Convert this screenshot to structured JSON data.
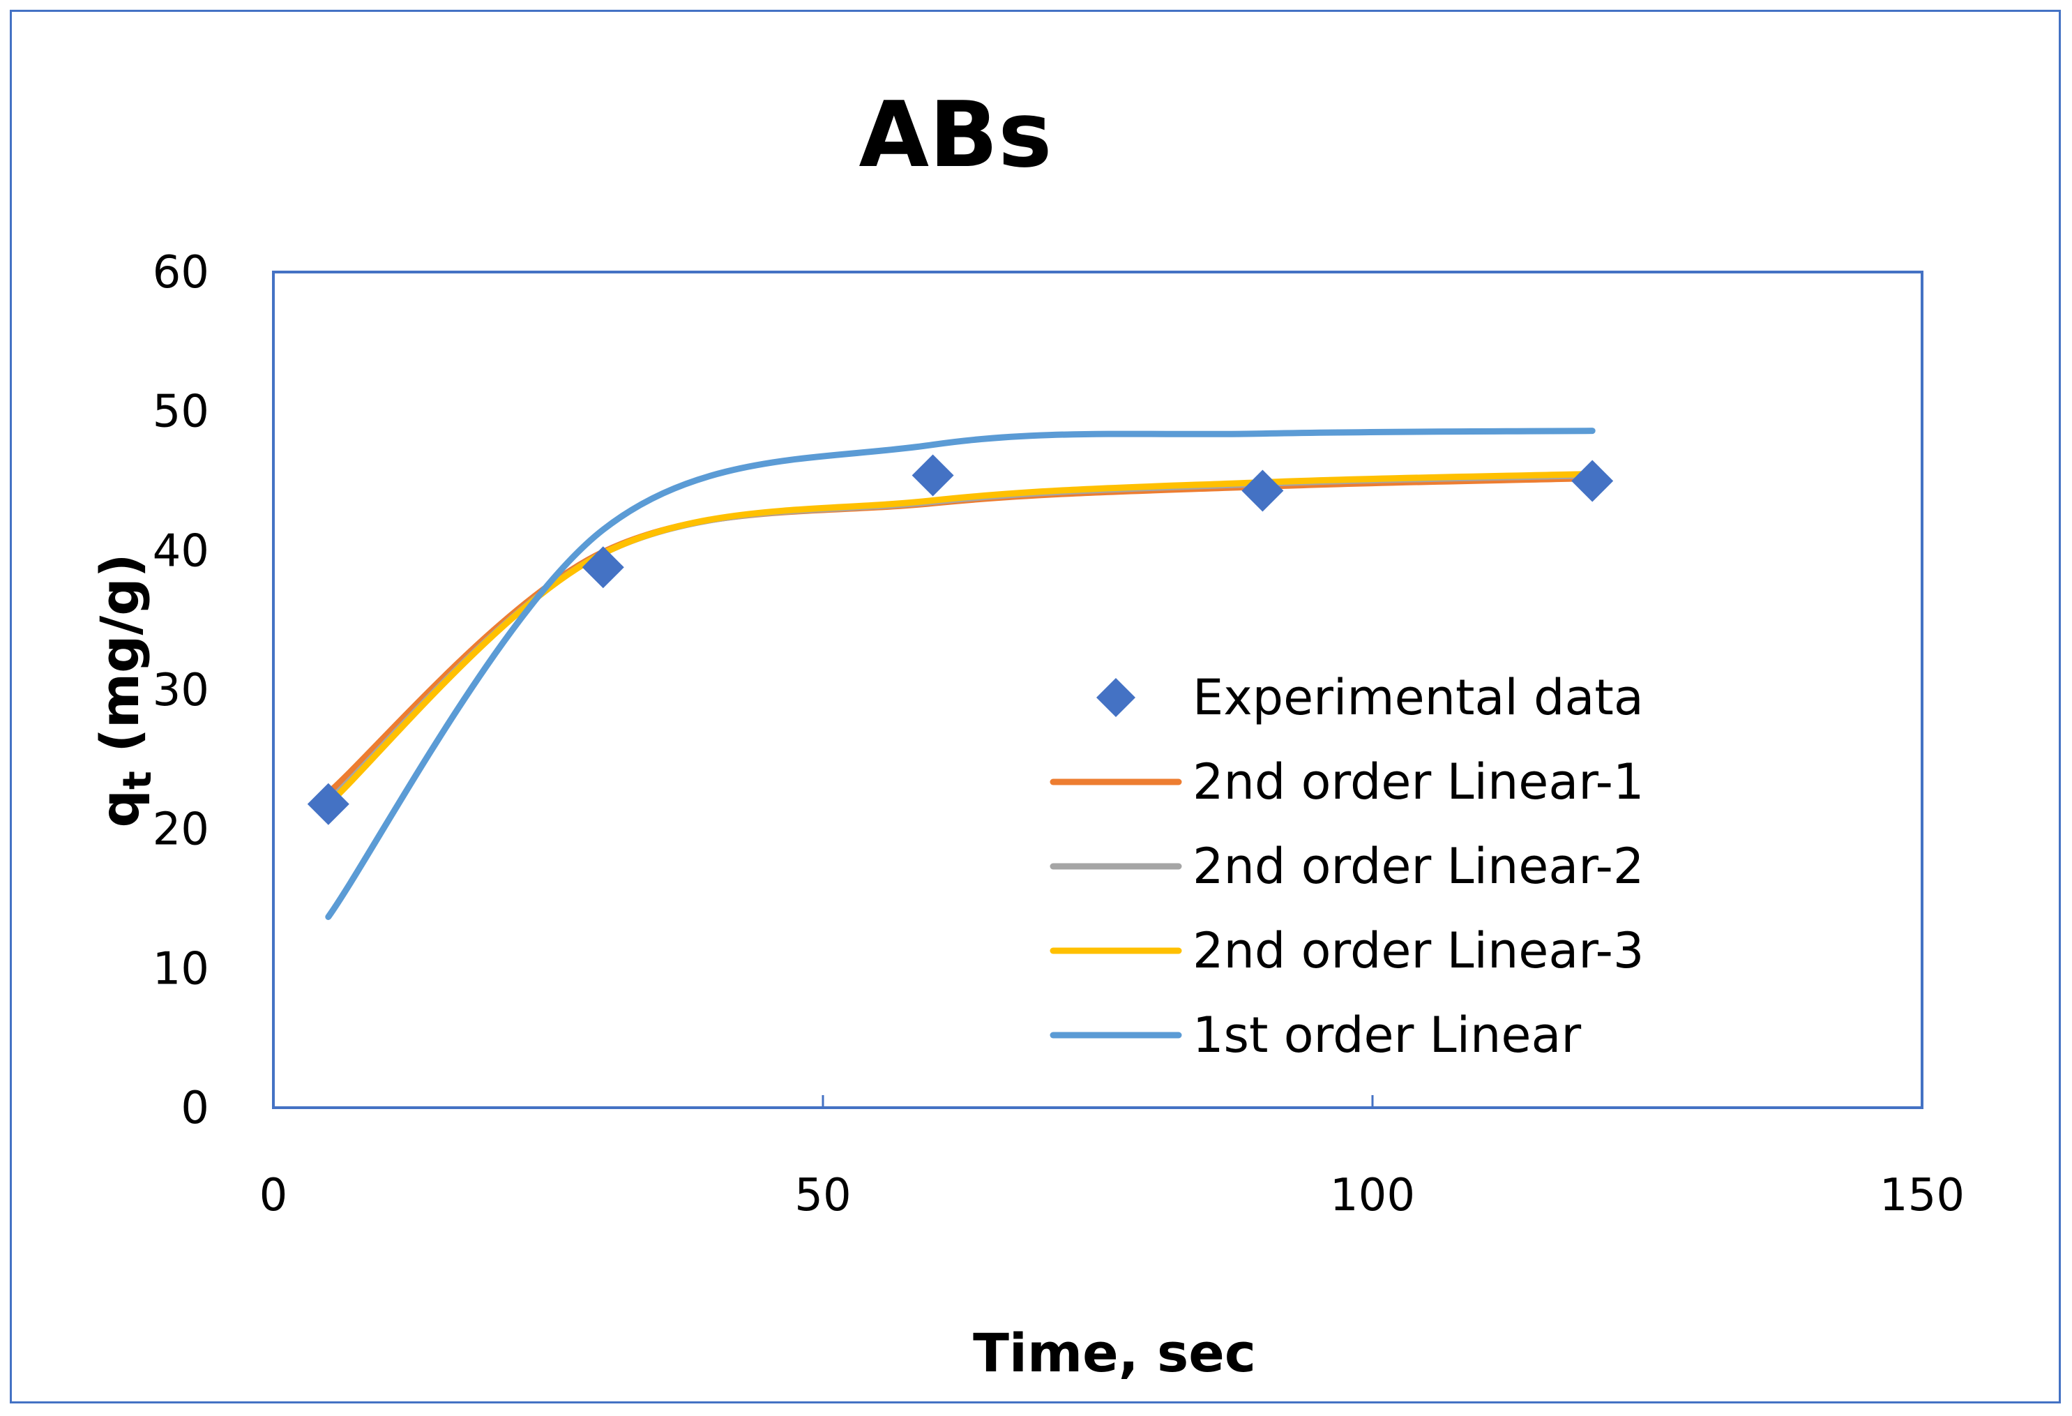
{
  "chart_data": {
    "type": "scatter",
    "title": "ABs",
    "xlabel": "Time, sec",
    "ylabel_main": "q",
    "ylabel_sub": "t",
    "ylabel_units": " (mg/g)",
    "xlim": [
      0,
      150
    ],
    "ylim": [
      0,
      60
    ],
    "xticks": [
      0,
      50,
      100,
      150
    ],
    "yticks": [
      0,
      10,
      20,
      30,
      40,
      50,
      60
    ],
    "grid": false,
    "legend_position": "right",
    "series": [
      {
        "name": "Experimental data",
        "kind": "markers",
        "marker": "diamond",
        "color": "#4472c4",
        "x": [
          5,
          30,
          60,
          90,
          120
        ],
        "y": [
          21.8,
          38.8,
          45.4,
          44.3,
          45.0
        ]
      },
      {
        "name": "2nd order Linear-1",
        "kind": "smooth-line",
        "color": "#ed7d31",
        "x": [
          5,
          30,
          60,
          90,
          120
        ],
        "y": [
          22.6,
          39.9,
          43.4,
          44.6,
          45.2
        ]
      },
      {
        "name": "2nd order Linear-2",
        "kind": "smooth-line",
        "color": "#a5a5a5",
        "x": [
          5,
          30,
          60,
          90,
          120
        ],
        "y": [
          22.0,
          39.8,
          43.5,
          44.8,
          45.4
        ]
      },
      {
        "name": "2nd order Linear-3",
        "kind": "smooth-line",
        "color": "#ffc000",
        "x": [
          5,
          30,
          60,
          90,
          120
        ],
        "y": [
          21.8,
          39.8,
          43.6,
          44.9,
          45.5
        ]
      },
      {
        "name": "1st order Linear",
        "kind": "smooth-line",
        "color": "#5b9bd5",
        "x": [
          5,
          30,
          60,
          90,
          120
        ],
        "y": [
          13.7,
          41.5,
          47.6,
          48.4,
          48.6
        ]
      }
    ]
  },
  "colors": {
    "frame_border": "#4472c4",
    "plot_border": "#4472c4",
    "axis": "#4472c4"
  }
}
